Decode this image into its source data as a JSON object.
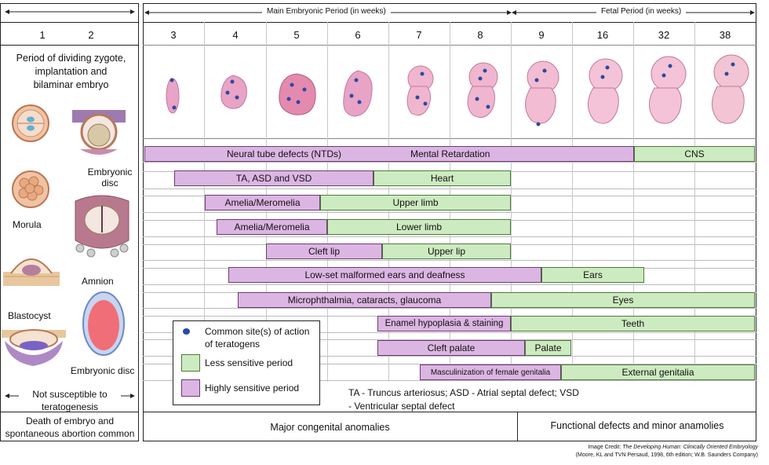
{
  "header": {
    "main_period": "Main Embryonic Period (in weeks)",
    "fetal_period": "Fetal Period (in weeks)"
  },
  "weeks_left": [
    "1",
    "2"
  ],
  "weeks_main": [
    "3",
    "4",
    "5",
    "6",
    "7",
    "8",
    "9",
    "16",
    "32",
    "38"
  ],
  "left_panel": {
    "title": "Period of dividing zygote, implantation and bilaminar embryo",
    "labels": {
      "embryonic_disc": "Embryonic disc",
      "morula": "Morula",
      "amnion": "Amnion",
      "blastocyst": "Blastocyst",
      "embryonic_disc2": "Embryonic disc"
    },
    "not_susceptible": "Not susceptible to teratogenesis",
    "death": "Death of embryo and spontaneous abortion common"
  },
  "bars": {
    "ntd": "Neural tube defects (NTDs)",
    "mental": "Mental Retardation",
    "cns": "CNS",
    "heart_hs": "TA, ASD and VSD",
    "heart_ls": "Heart",
    "upper_hs": "Amelia/Meromelia",
    "upper_ls": "Upper limb",
    "lower_hs": "Amelia/Meromelia",
    "lower_ls": "Lower limb",
    "lip_hs": "Cleft lip",
    "lip_ls": "Upper lip",
    "ears_hs": "Low-set malformed ears and deafness",
    "ears_ls": "Ears",
    "eyes_hs": "Microphthalmia, cataracts, glaucoma",
    "eyes_ls": "Eyes",
    "teeth_hs": "Enamel hypoplasia & staining",
    "teeth_ls": "Teeth",
    "palate_hs": "Cleft palate",
    "palate_ls": "Palate",
    "genit_hs": "Masculinization of female genitalia",
    "genit_ls": "External genitalia"
  },
  "legend": {
    "dot": "Common site(s) of action of teratogens",
    "less": "Less sensitive period",
    "high": "Highly sensitive period"
  },
  "abbrev": "TA - Truncus arteriosus; ASD - Atrial septal defect; VSD - Ventricular septal defect",
  "bottom": {
    "major": "Major congenital anomalies",
    "functional": "Functional defects and minor anamolies"
  },
  "credit": {
    "line1_prefix": "Image Credit:",
    "line1_title": "The Developing Human: Clinically Oriented Embryology",
    "line2": "(Moore, KL and TVN Persaud, 1998, 6th edition; W.B. Saunders Company)"
  },
  "colors": {
    "high_sensitive": "#dcb6e3",
    "less_sensitive": "#cdebc0",
    "embryo": "#e9a3c6",
    "teratogen_dot": "#2a4aa0"
  }
}
